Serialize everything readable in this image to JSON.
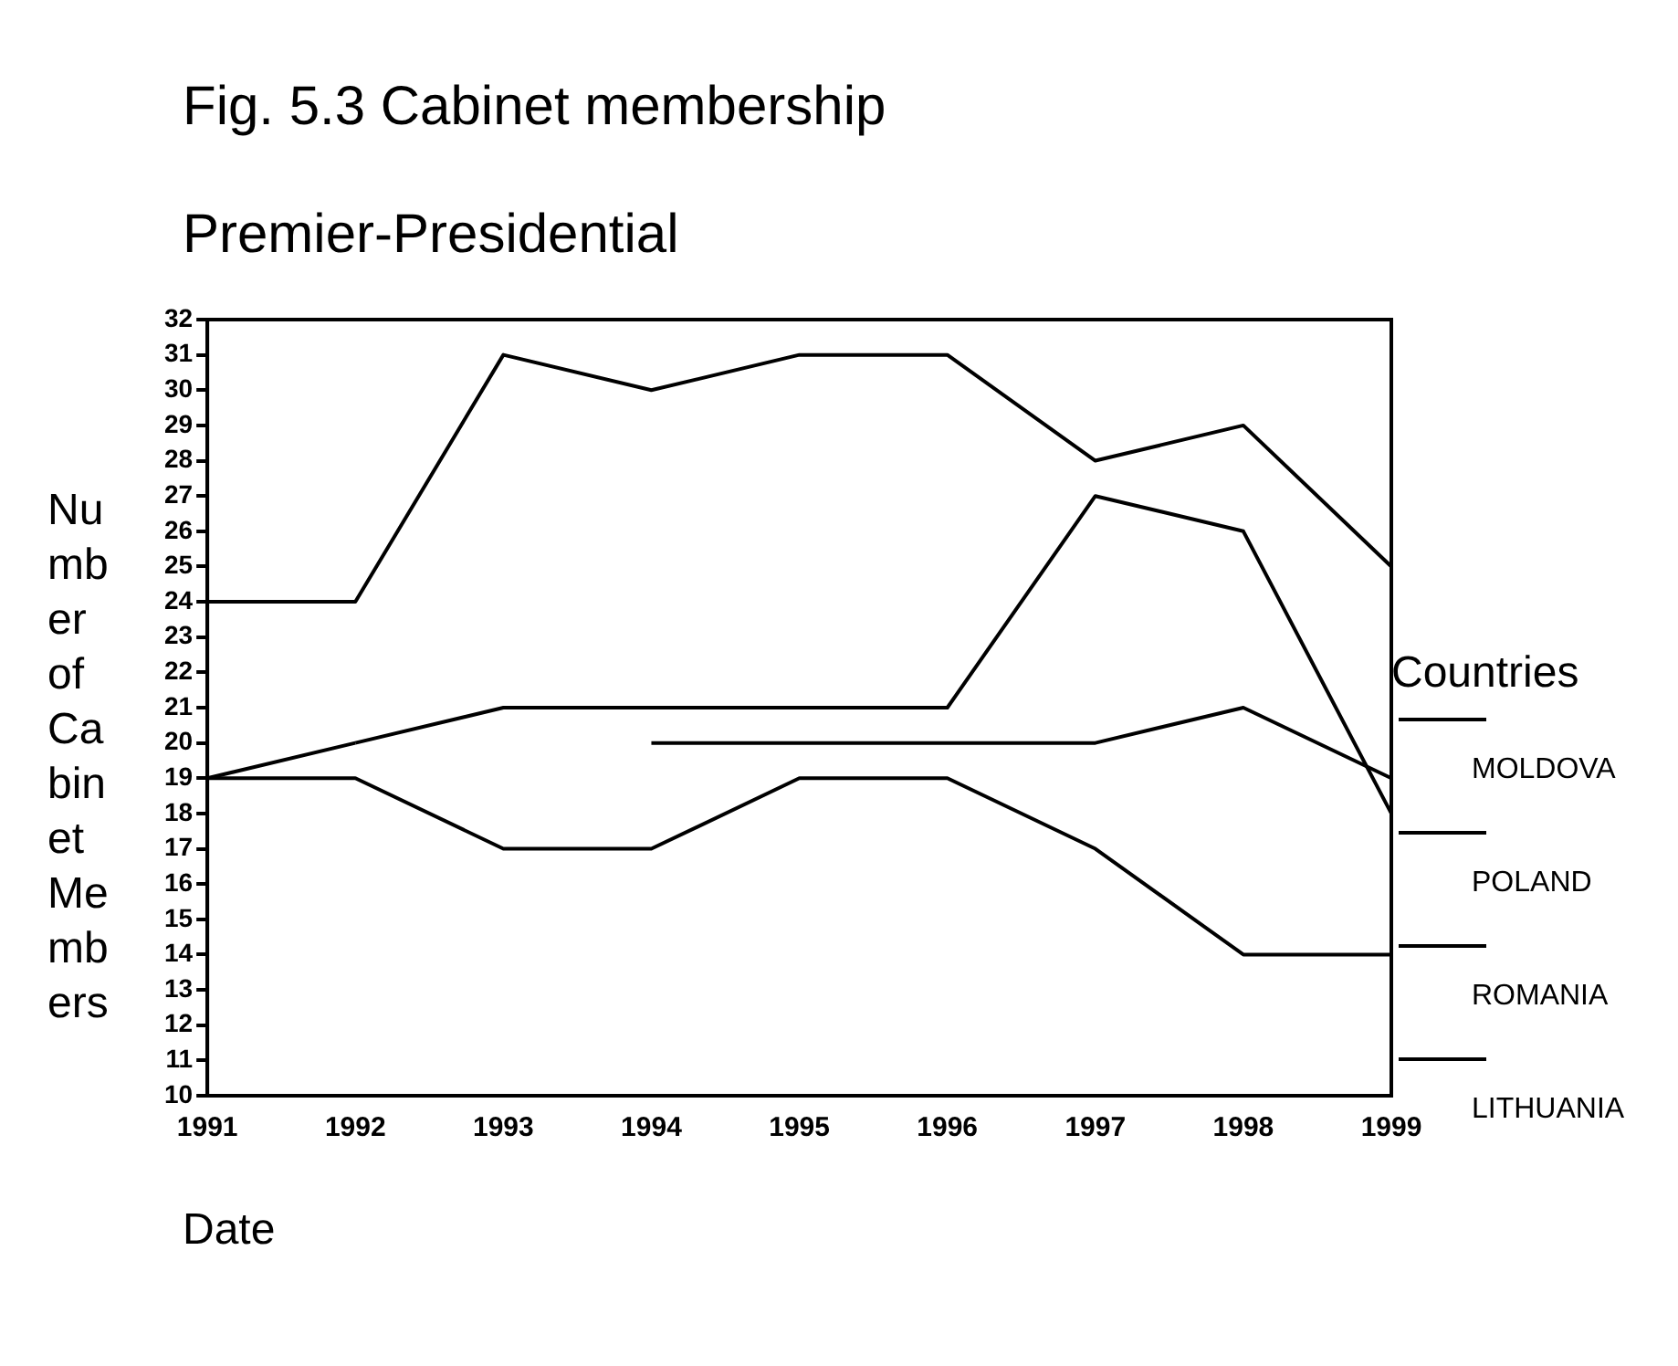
{
  "chart_data": {
    "type": "line",
    "title": "Fig. 5.3 Cabinet membership",
    "subtitle": "Premier-Presidential",
    "xlabel": "Date",
    "ylabel": "Number of Cabinet Members",
    "legend_title": "Countries",
    "legend": "right",
    "marker": "none",
    "grid": false,
    "categories": [
      "1991",
      "1992",
      "1993",
      "1994",
      "1995",
      "1996",
      "1997",
      "1998",
      "1999"
    ],
    "ylim": [
      10,
      32
    ],
    "yticks": [
      10,
      11,
      12,
      13,
      14,
      15,
      16,
      17,
      18,
      19,
      20,
      21,
      22,
      23,
      24,
      25,
      26,
      27,
      28,
      29,
      30,
      31,
      32
    ],
    "series": [
      {
        "name": "MOLDOVA",
        "color": "#000000",
        "values": [
          24,
          24,
          31,
          30,
          31,
          31,
          28,
          29,
          25
        ]
      },
      {
        "name": "POLAND",
        "color": "#000000",
        "values": [
          19,
          20,
          null,
          20,
          20,
          20,
          20,
          21,
          19
        ]
      },
      {
        "name": "ROMANIA",
        "color": "#000000",
        "values": [
          null,
          20,
          21,
          21,
          21,
          21,
          27,
          26,
          18
        ]
      },
      {
        "name": "LITHUANIA",
        "color": "#000000",
        "values": [
          19,
          19,
          17,
          17,
          19,
          19,
          17,
          14,
          14
        ]
      }
    ]
  }
}
